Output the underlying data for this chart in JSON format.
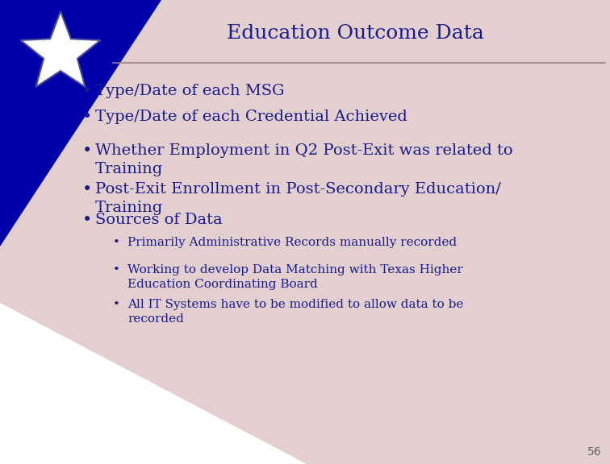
{
  "title": "Education Outcome Data",
  "title_color": "#1a1a8c",
  "title_fontsize": 18,
  "bg_color": "#ffffff",
  "text_color": "#1a1a8c",
  "main_bullets": [
    "Type/Date of each MSG",
    "Type/Date of each Credential Achieved",
    "Whether Employment in Q2 Post-Exit was related to\nTraining",
    "Post-Exit Enrollment in Post-Secondary Education/\nTraining",
    "Sources of Data"
  ],
  "sub_bullets": [
    "Primarily Administrative Records manually recorded",
    "Working to develop Data Matching with Texas Higher\nEducation Coordinating Board",
    "All IT Systems have to be modified to allow data to be\nrecorded"
  ],
  "main_bullet_fontsize": 14,
  "sub_bullet_fontsize": 11,
  "slide_number": "56",
  "header_line_color": "#9c8080",
  "triangle_color_blue": "#0000aa",
  "triangle_color_pink": "#c8a0a0",
  "star_color": "#ffffff",
  "star_outline": "#4a4a9a"
}
